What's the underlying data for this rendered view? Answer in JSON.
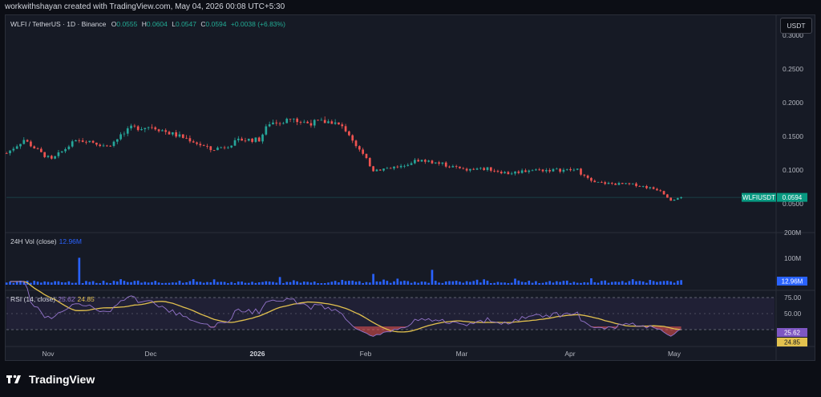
{
  "header": {
    "credit": "workwithshayan created with TradingView.com, May 04, 2026 00:08 UTC+5:30"
  },
  "legend": {
    "symbol": "WLFI / TetherUS · 1D · Binance",
    "o_label": "O",
    "o": "0.0555",
    "h_label": "H",
    "h": "0.0604",
    "l_label": "L",
    "l": "0.0547",
    "c_label": "C",
    "c": "0.0594",
    "change": "+0.0038 (+6.83%)"
  },
  "currency_button": "USDT",
  "price_axis": [
    "0.3000",
    "0.2500",
    "0.2000",
    "0.1500",
    "0.1000",
    "0.0500"
  ],
  "last_price": {
    "label": "WLFIUSDT",
    "value": "0.0594"
  },
  "volume": {
    "title": "24H Vol (close)",
    "value": "12.96M",
    "axis": [
      "200M",
      "100M"
    ],
    "badge": "12.96M"
  },
  "rsi": {
    "title": "RSI (14, close)",
    "rsi": "25.62",
    "ma": "24.85",
    "axis": [
      "75.00",
      "50.00"
    ],
    "badge_rsi": "25.62",
    "badge_ma": "24.85"
  },
  "time_axis": [
    "Nov",
    "Dec",
    "2026",
    "Feb",
    "Mar",
    "Apr",
    "May"
  ],
  "footer": {
    "brand": "TradingView"
  },
  "colors": {
    "up": "#26a69a",
    "down": "#ef5350",
    "volume": "#2962ff",
    "rsi": "#9575cd",
    "rsi_ma": "#e2c14e"
  },
  "chart_data": {
    "type": "candlestick",
    "interval": "1D",
    "ylim": [
      0.05,
      0.3
    ],
    "anchors": [
      {
        "date": "2025-10-20",
        "close": 0.125
      },
      {
        "date": "2025-10-25",
        "close": 0.145
      },
      {
        "date": "2025-10-30",
        "close": 0.125
      },
      {
        "date": "2025-11-02",
        "close": 0.115
      },
      {
        "date": "2025-11-08",
        "close": 0.14
      },
      {
        "date": "2025-11-12",
        "close": 0.145
      },
      {
        "date": "2025-11-18",
        "close": 0.135
      },
      {
        "date": "2025-11-22",
        "close": 0.15
      },
      {
        "date": "2025-11-25",
        "close": 0.162
      },
      {
        "date": "2025-12-01",
        "close": 0.165
      },
      {
        "date": "2025-12-06",
        "close": 0.155
      },
      {
        "date": "2025-12-12",
        "close": 0.145
      },
      {
        "date": "2025-12-18",
        "close": 0.13
      },
      {
        "date": "2025-12-22",
        "close": 0.135
      },
      {
        "date": "2025-12-27",
        "close": 0.145
      },
      {
        "date": "2026-01-01",
        "close": 0.145
      },
      {
        "date": "2026-01-04",
        "close": 0.17
      },
      {
        "date": "2026-01-10",
        "close": 0.175
      },
      {
        "date": "2026-01-15",
        "close": 0.17
      },
      {
        "date": "2026-01-22",
        "close": 0.172
      },
      {
        "date": "2026-01-26",
        "close": 0.16
      },
      {
        "date": "2026-01-30",
        "close": 0.13
      },
      {
        "date": "2026-02-03",
        "close": 0.1
      },
      {
        "date": "2026-02-10",
        "close": 0.105
      },
      {
        "date": "2026-02-16",
        "close": 0.115
      },
      {
        "date": "2026-02-22",
        "close": 0.11
      },
      {
        "date": "2026-03-01",
        "close": 0.1
      },
      {
        "date": "2026-03-08",
        "close": 0.102
      },
      {
        "date": "2026-03-14",
        "close": 0.095
      },
      {
        "date": "2026-03-20",
        "close": 0.1
      },
      {
        "date": "2026-03-28",
        "close": 0.1
      },
      {
        "date": "2026-04-03",
        "close": 0.1
      },
      {
        "date": "2026-04-07",
        "close": 0.082
      },
      {
        "date": "2026-04-12",
        "close": 0.08
      },
      {
        "date": "2026-04-20",
        "close": 0.078
      },
      {
        "date": "2026-04-27",
        "close": 0.07
      },
      {
        "date": "2026-04-30",
        "close": 0.0556
      },
      {
        "date": "2026-05-03",
        "close": 0.0594
      }
    ],
    "volume_ylim": [
      0,
      200
    ],
    "volume_unit": "M",
    "volume_spikes": [
      {
        "date": "2025-11-10",
        "value": 105
      },
      {
        "date": "2026-02-03",
        "value": 42
      },
      {
        "date": "2026-02-20",
        "value": 58
      },
      {
        "date": "2026-01-07",
        "value": 30
      },
      {
        "date": "2026-04-07",
        "value": 25
      },
      {
        "date": "2026-04-30",
        "value": 12.96
      }
    ],
    "rsi_ylim": [
      0,
      100
    ],
    "rsi_band": [
      30,
      70
    ],
    "rsi_last": 25.62,
    "rsi_ma_last": 24.85
  }
}
